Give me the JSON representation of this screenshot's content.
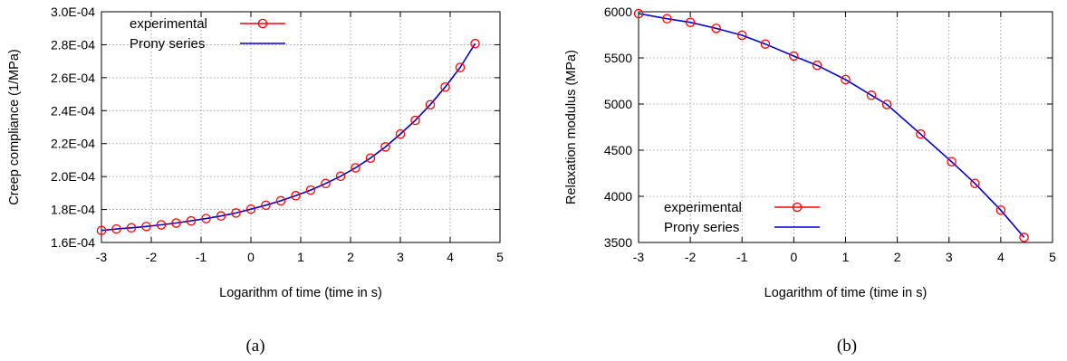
{
  "chart_data": [
    {
      "panel_label": "(a)",
      "type": "line",
      "xlabel": "Logarithm of time (time in s)",
      "ylabel": "Creep compliance (1/MPa)",
      "xlim": [
        -3,
        5
      ],
      "ylim": [
        0.00016,
        0.0003
      ],
      "xticks": [
        -3,
        -2,
        -1,
        0,
        1,
        2,
        3,
        4,
        5
      ],
      "xtick_labels": [
        "-3",
        "-2",
        "-1",
        "0",
        "1",
        "2",
        "3",
        "4",
        "5"
      ],
      "yticks": [
        0.00016,
        0.00018,
        0.0002,
        0.00022,
        0.00024,
        0.00026,
        0.00028,
        0.0003
      ],
      "ytick_labels": [
        "1.6E-04",
        "1.8E-04",
        "2.0E-04",
        "2.2E-04",
        "2.4E-04",
        "2.6E-04",
        "2.8E-04",
        "3.0E-04"
      ],
      "grid": true,
      "legend_position": "top-left",
      "series": [
        {
          "name": "experimental",
          "style": "markers",
          "color": "#ff0000",
          "x": [
            -3.0,
            -2.7,
            -2.4,
            -2.1,
            -1.8,
            -1.5,
            -1.2,
            -0.9,
            -0.6,
            -0.3,
            0.0,
            0.3,
            0.6,
            0.9,
            1.2,
            1.5,
            1.8,
            2.1,
            2.4,
            2.7,
            3.0,
            3.3,
            3.6,
            3.9,
            4.2,
            4.5
          ],
          "y": [
            0.0001673,
            0.0001682,
            0.0001689,
            0.0001697,
            0.0001707,
            0.0001718,
            0.0001731,
            0.0001745,
            0.0001761,
            0.0001779,
            0.0001802,
            0.0001826,
            0.0001853,
            0.0001884,
            0.0001918,
            0.0001958,
            0.0002002,
            0.0002053,
            0.0002112,
            0.000218,
            0.0002258,
            0.0002341,
            0.0002436,
            0.0002543,
            0.0002662,
            0.0002807
          ]
        },
        {
          "name": "Prony series",
          "style": "line",
          "color": "#0000cc",
          "x": [
            -3.0,
            -2.7,
            -2.4,
            -2.1,
            -1.8,
            -1.5,
            -1.2,
            -0.9,
            -0.6,
            -0.3,
            0.0,
            0.3,
            0.6,
            0.9,
            1.2,
            1.5,
            1.8,
            2.1,
            2.4,
            2.7,
            3.0,
            3.3,
            3.6,
            3.9,
            4.2,
            4.5
          ],
          "y": [
            0.0001673,
            0.0001682,
            0.0001689,
            0.0001697,
            0.0001707,
            0.0001718,
            0.0001731,
            0.0001745,
            0.0001761,
            0.0001779,
            0.0001802,
            0.0001826,
            0.0001853,
            0.0001884,
            0.0001918,
            0.0001958,
            0.0002002,
            0.0002053,
            0.0002112,
            0.000218,
            0.0002258,
            0.0002341,
            0.0002436,
            0.0002543,
            0.0002662,
            0.0002807
          ]
        }
      ]
    },
    {
      "panel_label": "(b)",
      "type": "line",
      "xlabel": "Logarithm of time (time in s)",
      "ylabel": "Relaxation modulus (MPa)",
      "xlim": [
        -3,
        5
      ],
      "ylim": [
        3500,
        6000
      ],
      "xticks": [
        -3,
        -2,
        -1,
        0,
        1,
        2,
        3,
        4,
        5
      ],
      "xtick_labels": [
        "-3",
        "-2",
        "-1",
        "0",
        "1",
        "2",
        "3",
        "4",
        "5"
      ],
      "yticks": [
        3500,
        4000,
        4500,
        5000,
        5500,
        6000
      ],
      "ytick_labels": [
        "3500",
        "4000",
        "4500",
        "5000",
        "5500",
        "6000"
      ],
      "grid": true,
      "legend_position": "bottom-left",
      "series": [
        {
          "name": "experimental",
          "style": "markers",
          "color": "#ff0000",
          "x": [
            -3.0,
            -2.45,
            -2.0,
            -1.5,
            -1.0,
            -0.55,
            0.0,
            0.45,
            1.0,
            1.5,
            1.8,
            2.45,
            3.05,
            3.5,
            4.0,
            4.45
          ],
          "y": [
            5980,
            5925,
            5885,
            5820,
            5745,
            5650,
            5520,
            5420,
            5265,
            5095,
            4995,
            4675,
            4375,
            4140,
            3850,
            3555
          ]
        },
        {
          "name": "Prony series",
          "style": "line",
          "color": "#0000cc",
          "x": [
            -3.0,
            -2.45,
            -2.0,
            -1.5,
            -1.0,
            -0.55,
            0.0,
            0.45,
            1.0,
            1.5,
            1.8,
            2.45,
            3.05,
            3.5,
            4.0,
            4.45
          ],
          "y": [
            5980,
            5925,
            5885,
            5820,
            5745,
            5650,
            5520,
            5420,
            5265,
            5095,
            4995,
            4675,
            4375,
            4140,
            3850,
            3555
          ]
        }
      ]
    }
  ]
}
